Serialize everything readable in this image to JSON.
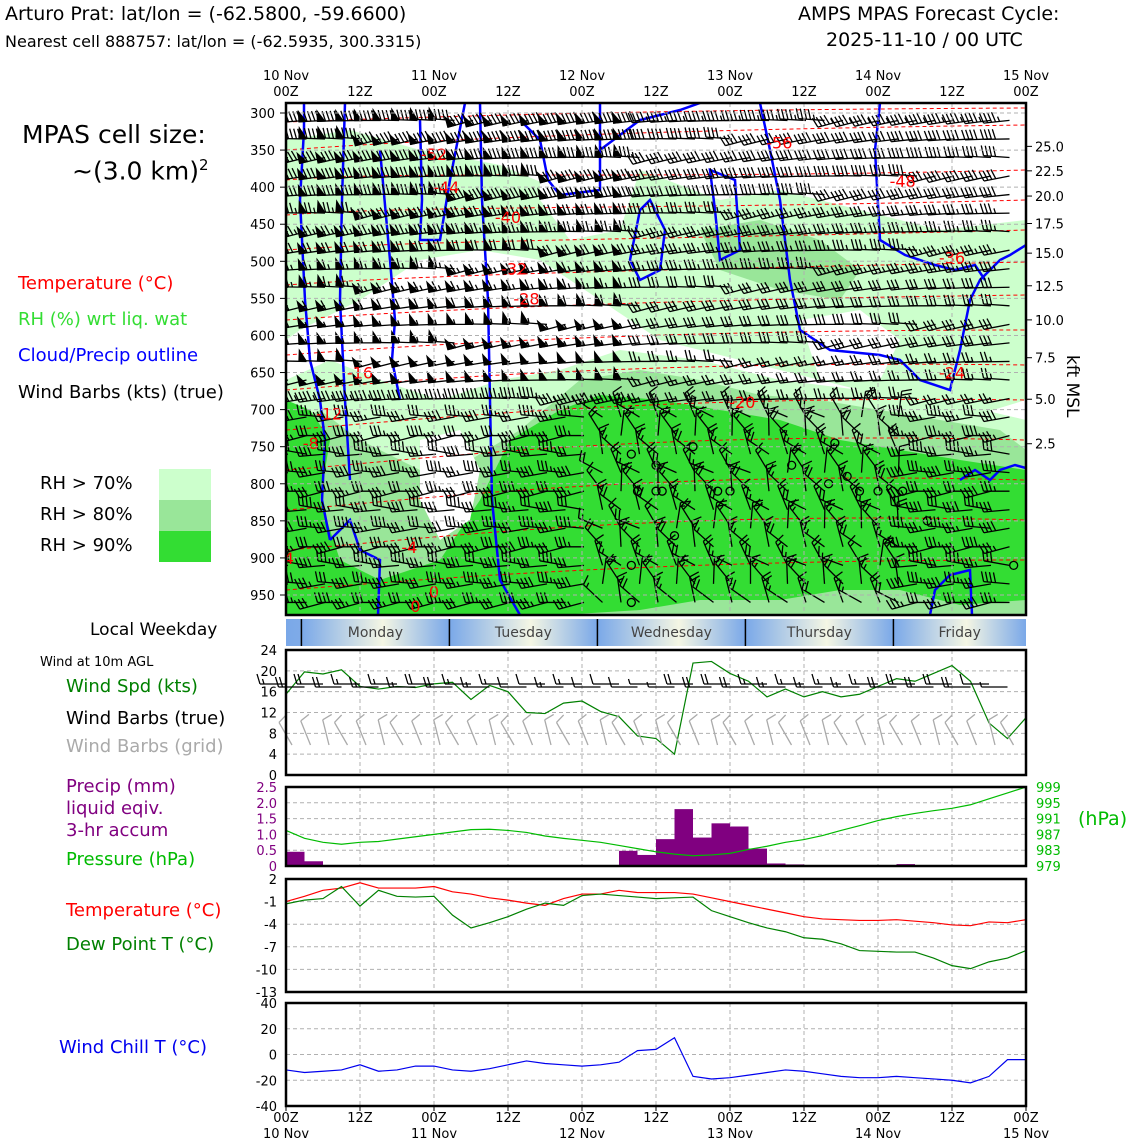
{
  "header": {
    "station": "Arturo Prat: lat/lon = (-62.5800, -59.6600)",
    "nearest": "Nearest cell 888757: lat/lon = (-62.5935, 300.3315)",
    "cycle_line1": "AMPS MPAS Forecast Cycle:",
    "cycle_line2": "2025-11-10 / 00 UTC"
  },
  "left_legend": {
    "cell_size_line1": "MPAS cell size:",
    "cell_size_line2": "~(3.0 km)",
    "cell_size_sup": "2",
    "temperature": "Temperature (°C)",
    "rh": "RH (%) wrt liq. wat",
    "cloud": "Cloud/Precip outline",
    "wind": "Wind Barbs (kts) (true)",
    "rh70": "RH > 70%",
    "rh80": "RH > 80%",
    "rh90": "RH > 90%"
  },
  "colors": {
    "temperature": "#ff0000",
    "rh_label": "#33dd33",
    "rh70": "#ccffcc",
    "rh80": "#99e699",
    "rh90": "#33dd33",
    "cloud": "#0000ff",
    "wind_spd": "#008000",
    "grid_barb": "#aaaaaa",
    "precip": "#800080",
    "pressure": "#00bb00",
    "dewpoint": "#008000",
    "windchill": "#0000ee"
  },
  "time_axis": {
    "top_days": [
      "10 Nov",
      "11 Nov",
      "12 Nov",
      "13 Nov",
      "14 Nov",
      "15 Nov"
    ],
    "hour_labels": [
      "00Z",
      "12Z",
      "00Z",
      "12Z",
      "00Z",
      "12Z",
      "00Z",
      "12Z",
      "00Z",
      "12Z",
      "00Z"
    ],
    "range_hours": [
      0,
      120
    ]
  },
  "weekday": {
    "label": "Local Weekday",
    "days": [
      "Monday",
      "Tuesday",
      "Wednesday",
      "Thursday",
      "Friday"
    ]
  },
  "chart_data": [
    {
      "type": "heatmap",
      "name": "time-height cross section",
      "y_pressure_ticks": [
        300,
        350,
        400,
        450,
        500,
        550,
        600,
        650,
        700,
        750,
        800,
        850,
        900,
        950
      ],
      "y_range_hPa": [
        300,
        985
      ],
      "right_axis_label": "kft MSL",
      "right_ticks": [
        {
          "label": "25.0",
          "hPa": 345
        },
        {
          "label": "22.5",
          "hPa": 378
        },
        {
          "label": "20.0",
          "hPa": 412
        },
        {
          "label": "17.5",
          "hPa": 449
        },
        {
          "label": "15.0",
          "hPa": 489
        },
        {
          "label": "12.5",
          "hPa": 533
        },
        {
          "label": "10.0",
          "hPa": 579
        },
        {
          "label": "7.5",
          "hPa": 630
        },
        {
          "label": "5.0",
          "hPa": 686
        },
        {
          "label": "2.5",
          "hPa": 746
        }
      ],
      "temperature_labels": [
        {
          "t": "-56",
          "h": 80,
          "p": 340
        },
        {
          "t": "-52",
          "h": 24,
          "p": 355
        },
        {
          "t": "-48",
          "h": 100,
          "p": 392
        },
        {
          "t": "-44",
          "h": 26,
          "p": 400
        },
        {
          "t": "-40",
          "h": 36,
          "p": 440
        },
        {
          "t": "-36",
          "h": 108,
          "p": 495
        },
        {
          "t": "-32",
          "h": 37,
          "p": 510
        },
        {
          "t": "-28",
          "h": 39,
          "p": 550
        },
        {
          "t": "-24",
          "h": 108,
          "p": 650
        },
        {
          "t": "-20",
          "h": 74,
          "p": 690
        },
        {
          "t": "-16",
          "h": 12,
          "p": 650
        },
        {
          "t": "-12",
          "h": 7,
          "p": 705
        },
        {
          "t": "-8",
          "h": 4,
          "p": 745
        },
        {
          "t": "-4",
          "h": 0,
          "p": 900
        },
        {
          "t": "-4",
          "h": 20,
          "p": 885
        },
        {
          "t": "0",
          "h": 21,
          "p": 965
        },
        {
          "t": "0",
          "h": 24,
          "p": 945
        }
      ],
      "calm_circles": [
        {
          "h": 56,
          "p": 760
        },
        {
          "h": 60,
          "p": 775
        },
        {
          "h": 60,
          "p": 810
        },
        {
          "h": 57,
          "p": 810
        },
        {
          "h": 63,
          "p": 870
        },
        {
          "h": 61,
          "p": 810
        },
        {
          "h": 66,
          "p": 750
        },
        {
          "h": 70,
          "p": 810
        },
        {
          "h": 72,
          "p": 810
        },
        {
          "h": 56,
          "p": 910
        },
        {
          "h": 56,
          "p": 960
        },
        {
          "h": 82,
          "p": 775
        },
        {
          "h": 89,
          "p": 745
        },
        {
          "h": 88,
          "p": 800
        },
        {
          "h": 91,
          "p": 790
        },
        {
          "h": 93,
          "p": 810
        },
        {
          "h": 96,
          "p": 810
        },
        {
          "h": 100,
          "p": 810
        },
        {
          "h": 104,
          "p": 850
        },
        {
          "h": 118,
          "p": 910
        }
      ]
    },
    {
      "type": "line",
      "name": "wind speed at 10m",
      "panel_title": "Wind at 10m AGL",
      "label_spd": "Wind Spd (kts)",
      "label_barb_true": "Wind Barbs (true)",
      "label_barb_grid": "Wind Barbs (grid)",
      "ylim": [
        0,
        24
      ],
      "yticks": [
        0,
        4,
        8,
        12,
        16,
        20,
        24
      ],
      "x_hours": [
        0,
        3,
        6,
        9,
        12,
        15,
        18,
        21,
        24,
        27,
        30,
        33,
        36,
        39,
        42,
        45,
        48,
        51,
        54,
        57,
        60,
        63,
        66,
        69,
        72,
        75,
        78,
        81,
        84,
        87,
        90,
        93,
        96,
        99,
        102,
        105,
        108,
        111,
        114,
        117,
        120
      ],
      "wind_spd": [
        15.5,
        19.8,
        19.4,
        20.2,
        17.0,
        16.5,
        17.0,
        16.8,
        17.5,
        17.8,
        14.5,
        17.2,
        16.0,
        12.0,
        11.8,
        13.8,
        14.2,
        12.2,
        11.2,
        7.5,
        7.0,
        4.0,
        21.5,
        21.8,
        19.5,
        18.0,
        15.0,
        16.5,
        15.0,
        16.0,
        15.0,
        15.5,
        17.0,
        18.5,
        18.0,
        19.5,
        21.0,
        18.0,
        10.0,
        7.0,
        11.0
      ]
    },
    {
      "type": "bar",
      "name": "precipitation and pressure",
      "label_precip": "Precip (mm)",
      "label_precip2": "liquid eqiv.",
      "label_precip3": "3-hr accum",
      "label_pressure": "Pressure (hPa)",
      "right_unit": "(hPa)",
      "precip_ylim": [
        0,
        2.5
      ],
      "precip_yticks": [
        "0",
        "0.5",
        "1.0",
        "1.5",
        "2.0",
        "2.5"
      ],
      "pressure_ylim": [
        979,
        999
      ],
      "pressure_yticks": [
        "979",
        "983",
        "987",
        "991",
        "995",
        "999"
      ],
      "x_hours": [
        0,
        3,
        6,
        9,
        12,
        15,
        18,
        21,
        24,
        27,
        30,
        33,
        36,
        39,
        42,
        45,
        48,
        51,
        54,
        57,
        60,
        63,
        66,
        69,
        72,
        75,
        78,
        81,
        84,
        87,
        90,
        93,
        96,
        99,
        102,
        105,
        108,
        111,
        114,
        117,
        120
      ],
      "precip_mm": [
        0.45,
        0.15,
        0,
        0,
        0,
        0,
        0,
        0,
        0,
        0,
        0,
        0,
        0,
        0,
        0,
        0,
        0,
        0,
        0.48,
        0.35,
        0.85,
        1.8,
        0.9,
        1.35,
        1.25,
        0.55,
        0.08,
        0.05,
        0,
        0,
        0,
        0,
        0,
        0.06,
        0,
        0,
        0,
        0,
        0,
        0,
        0
      ],
      "pressure_hPa": [
        988.0,
        986.0,
        985.0,
        984.5,
        985.0,
        985.2,
        985.8,
        986.4,
        987.0,
        987.6,
        988.2,
        988.3,
        988.0,
        987.5,
        986.6,
        986.0,
        985.5,
        985.0,
        984.2,
        983.4,
        982.6,
        982.0,
        981.6,
        981.8,
        982.2,
        983.2,
        984.0,
        985.0,
        985.7,
        986.7,
        988.0,
        989.2,
        990.5,
        991.5,
        992.3,
        993.0,
        993.6,
        994.5,
        996.0,
        997.5,
        999.0
      ]
    },
    {
      "type": "line",
      "name": "temperature and dew point",
      "label_temp": "Temperature (°C)",
      "label_dew": "Dew Point T (°C)",
      "ylim": [
        -13,
        2
      ],
      "yticks": [
        "2",
        "-1",
        "-4",
        "-7",
        "-10",
        "-13"
      ],
      "x_hours": [
        0,
        3,
        6,
        9,
        12,
        15,
        18,
        21,
        24,
        27,
        30,
        33,
        36,
        39,
        42,
        45,
        48,
        51,
        54,
        57,
        60,
        63,
        66,
        69,
        72,
        75,
        78,
        81,
        84,
        87,
        90,
        93,
        96,
        99,
        102,
        105,
        108,
        111,
        114,
        117,
        120
      ],
      "temperature": [
        -1.0,
        -0.3,
        0.5,
        0.8,
        1.5,
        0.8,
        0.8,
        0.8,
        1.0,
        0.3,
        0.0,
        -0.5,
        -0.8,
        -1.2,
        -1.5,
        -0.6,
        0.0,
        0.0,
        0.5,
        0.2,
        0.2,
        0.2,
        0.0,
        -0.5,
        -1.0,
        -1.5,
        -2.0,
        -2.5,
        -3.0,
        -3.3,
        -3.4,
        -3.5,
        -3.5,
        -3.4,
        -3.6,
        -3.8,
        -4.1,
        -4.2,
        -3.7,
        -3.8,
        -3.4
      ],
      "dew_point": [
        -1.3,
        -0.8,
        -0.6,
        1.0,
        -1.6,
        0.5,
        -0.3,
        -0.4,
        -0.3,
        -2.8,
        -4.5,
        -3.8,
        -3.0,
        -2.0,
        -1.2,
        -1.5,
        -0.2,
        0.0,
        -0.2,
        -0.4,
        -0.6,
        -0.5,
        -0.4,
        -2.2,
        -3.0,
        -3.8,
        -4.5,
        -5.0,
        -5.8,
        -6.0,
        -6.6,
        -7.5,
        -7.6,
        -7.7,
        -7.7,
        -8.5,
        -9.5,
        -9.9,
        -9.0,
        -8.5,
        -7.5
      ]
    },
    {
      "type": "line",
      "name": "wind chill",
      "label": "Wind Chill T (°C)",
      "ylim": [
        -40,
        40
      ],
      "yticks": [
        "40",
        "20",
        "0",
        "-20",
        "-40"
      ],
      "x_hours": [
        0,
        3,
        6,
        9,
        12,
        15,
        18,
        21,
        24,
        27,
        30,
        33,
        36,
        39,
        42,
        45,
        48,
        51,
        54,
        57,
        60,
        63,
        66,
        69,
        72,
        75,
        78,
        81,
        84,
        87,
        90,
        93,
        96,
        99,
        102,
        105,
        108,
        111,
        114,
        117,
        120
      ],
      "wind_chill": [
        -12,
        -14,
        -13,
        -12,
        -8,
        -13,
        -12,
        -9,
        -9,
        -12,
        -13,
        -11,
        -8,
        -5,
        -7,
        -8,
        -9,
        -8,
        -6,
        3,
        4,
        13,
        -17,
        -19,
        -18,
        -16,
        -14,
        -12,
        -13,
        -15,
        -17,
        -18,
        -18,
        -17,
        -18,
        -19,
        -20,
        -22,
        -17,
        -4,
        -4
      ]
    }
  ]
}
